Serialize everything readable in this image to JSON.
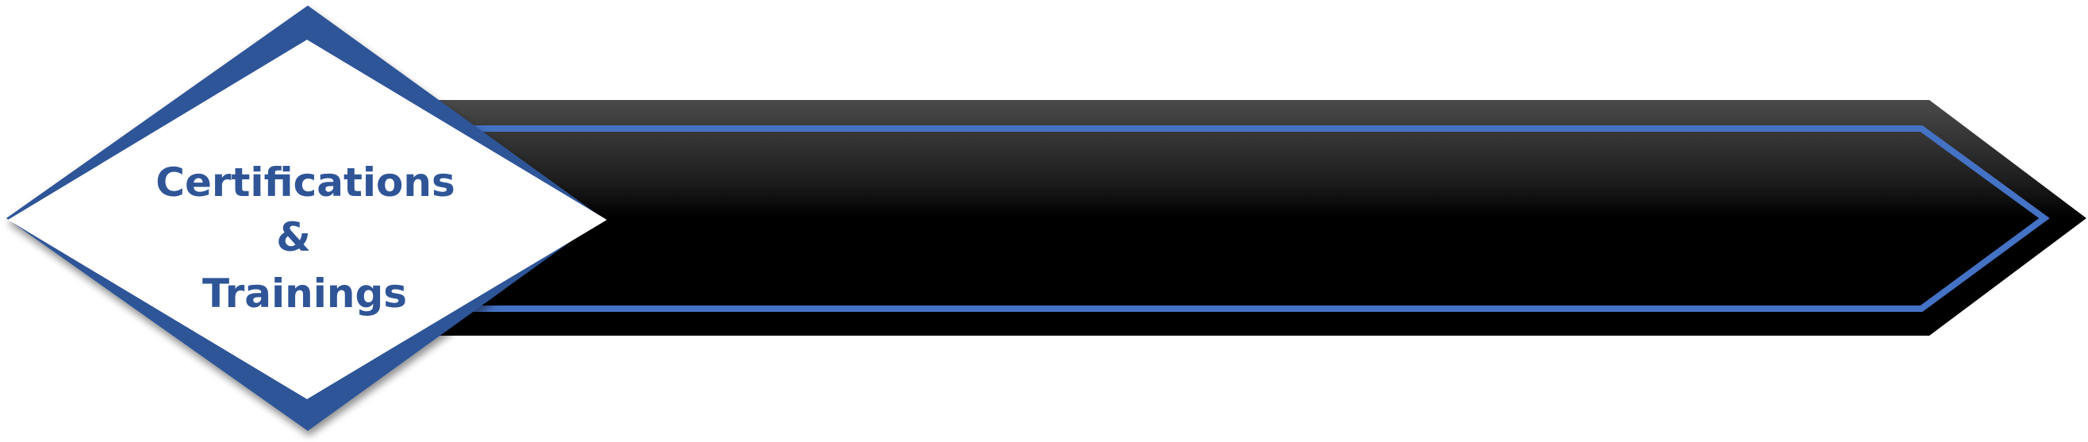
{
  "badge": {
    "line1": "Certifications",
    "line2": "&",
    "line3": "Trainings"
  },
  "colors": {
    "accent_blue": "#2f5597",
    "stripe_blue": "#4472c4",
    "bar_top": "#3a3a3a",
    "bar_black": "#000000",
    "badge_fill": "#ffffff"
  }
}
